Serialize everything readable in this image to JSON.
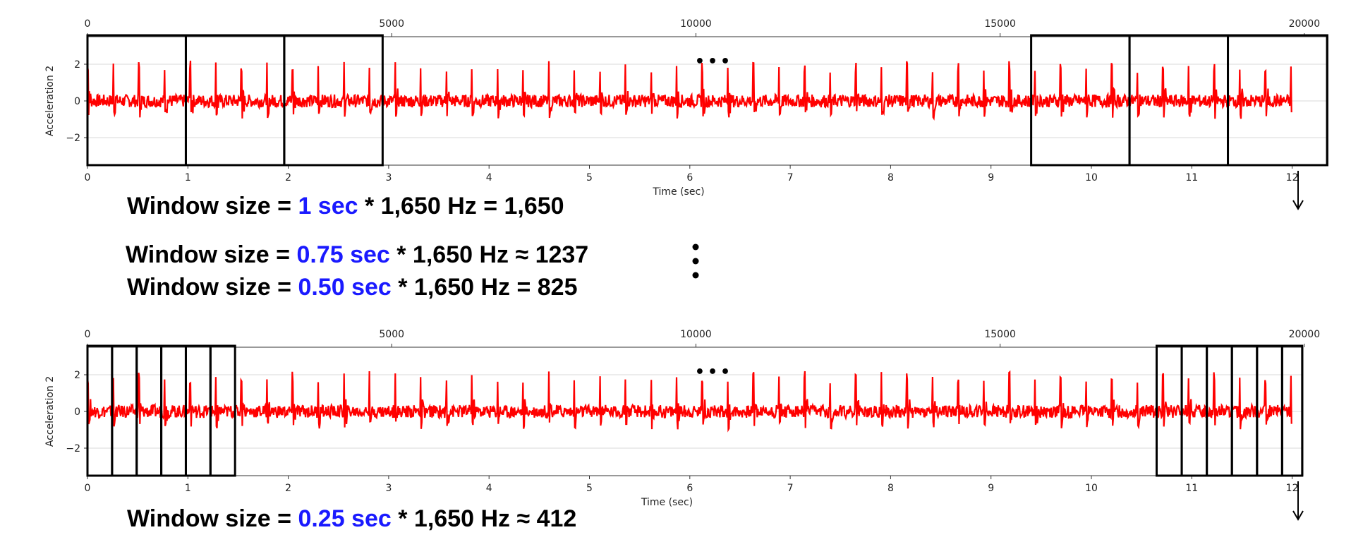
{
  "colors": {
    "signal": "#ff0000",
    "window_box": "#000000",
    "highlight": "#1a1aff",
    "grid": "#d9d9d9"
  },
  "chart_data": [
    {
      "type": "line",
      "title": "",
      "xlabel": "Time (sec)",
      "ylabel": "Acceleration 2",
      "xlim": [
        0,
        12.35
      ],
      "ylim": [
        -3.5,
        3.5
      ],
      "x_ticks": [
        "0",
        "1",
        "2",
        "3",
        "4",
        "5",
        "6",
        "7",
        "8",
        "9",
        "10",
        "11",
        "12"
      ],
      "top_axis_ticks": [
        {
          "sample": 0,
          "label": "0"
        },
        {
          "sample": 5000,
          "label": "5000"
        },
        {
          "sample": 10000,
          "label": "10000"
        },
        {
          "sample": 15000,
          "label": "15000"
        },
        {
          "sample": 20000,
          "label": "20000"
        }
      ],
      "y_ticks": [
        {
          "value": 2,
          "label": "2"
        },
        {
          "value": 0,
          "label": "0"
        },
        {
          "value": -2,
          "label": "−2"
        }
      ],
      "grid": true,
      "ellipsis": "•••",
      "series": [
        {
          "color": "#ff0000",
          "signal_end_sec": 12,
          "peak_period_sec": 0.255,
          "amplitude": 2.0
        }
      ],
      "windows_sec": [
        [
          0,
          0.98
        ],
        [
          0.98,
          1.96
        ],
        [
          1.96,
          2.94
        ],
        [
          9.4,
          10.38
        ],
        [
          10.38,
          11.36
        ],
        [
          11.36,
          12.35
        ]
      ],
      "equation": {
        "prefix": "Window size = ",
        "duration": "1 sec",
        "suffix": " * 1,650 Hz = 1,650"
      }
    },
    {
      "type": "line",
      "title": "",
      "xlabel": "Time (sec)",
      "ylabel": "Acceleration 2",
      "xlim": [
        0,
        12.35
      ],
      "ylim": [
        -3.5,
        3.5
      ],
      "x_ticks": [
        "0",
        "1",
        "2",
        "3",
        "4",
        "5",
        "6",
        "7",
        "8",
        "9",
        "10",
        "11",
        "12"
      ],
      "top_axis_ticks": [
        {
          "sample": 0,
          "label": "0"
        },
        {
          "sample": 5000,
          "label": "5000"
        },
        {
          "sample": 10000,
          "label": "10000"
        },
        {
          "sample": 15000,
          "label": "15000"
        },
        {
          "sample": 20000,
          "label": "20000"
        }
      ],
      "y_ticks": [
        {
          "value": 2,
          "label": "2"
        },
        {
          "value": 0,
          "label": "0"
        },
        {
          "value": -2,
          "label": "−2"
        }
      ],
      "grid": true,
      "ellipsis": "•••",
      "series": [
        {
          "color": "#ff0000",
          "signal_end_sec": 12,
          "peak_period_sec": 0.255,
          "amplitude": 2.0
        }
      ],
      "windows_sec": [
        [
          0,
          0.245
        ],
        [
          0.245,
          0.49
        ],
        [
          0.49,
          0.735
        ],
        [
          0.735,
          0.98
        ],
        [
          0.98,
          1.225
        ],
        [
          1.225,
          1.47
        ],
        [
          10.65,
          10.9
        ],
        [
          10.9,
          11.15
        ],
        [
          11.15,
          11.4
        ],
        [
          11.4,
          11.65
        ],
        [
          11.65,
          11.9
        ],
        [
          11.9,
          12.1
        ]
      ],
      "equation": {
        "prefix": "Window size = ",
        "duration": "0.25 sec",
        "suffix": " * 1,650 Hz ≈ 412"
      }
    }
  ],
  "middle_equations": [
    {
      "prefix": "Window size = ",
      "duration": "0.75 sec",
      "suffix": " * 1,650 Hz ≈ 1237"
    },
    {
      "prefix": "Window size = ",
      "duration": "0.50 sec",
      "suffix": " * 1,650 Hz = 825"
    }
  ]
}
